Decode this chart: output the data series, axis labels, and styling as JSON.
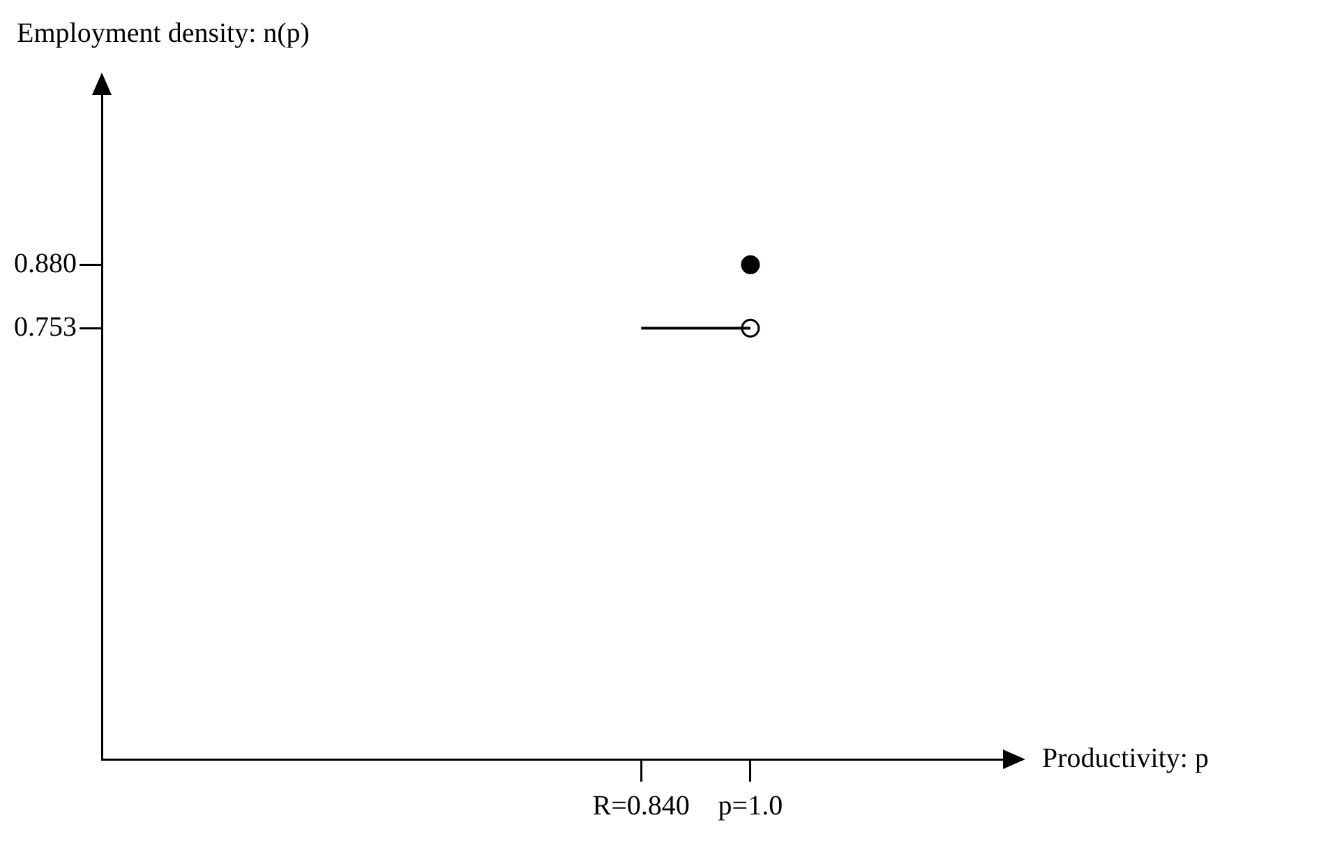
{
  "chart_data": {
    "type": "line",
    "xlabel": "Productivity: p",
    "ylabel": "Employment density: n(p)",
    "xlim": [
      0.05,
      1.37
    ],
    "ylim": [
      -0.11,
      1.22
    ],
    "xticks": [
      {
        "value": 0.84,
        "label": "R=0.840"
      },
      {
        "value": 1.0,
        "label": "p=1.0"
      }
    ],
    "yticks": [
      {
        "value": 0.753,
        "label": "0.753"
      },
      {
        "value": 0.88,
        "label": "0.880"
      }
    ],
    "grid": false,
    "legend": false,
    "x": [
      0.84,
      1.0
    ],
    "series": [
      {
        "type": "line",
        "values": [
          0.753,
          0.753
        ],
        "color": "#000000",
        "marker": "none",
        "line_style": "solid"
      },
      {
        "type": "scatter",
        "values": [
          null,
          0.88
        ],
        "color": "#000000",
        "marker": "circle"
      },
      {
        "type": "scatter",
        "values": [
          null,
          0.753
        ],
        "color": "#ffffff",
        "marker": "circle"
      }
    ]
  }
}
